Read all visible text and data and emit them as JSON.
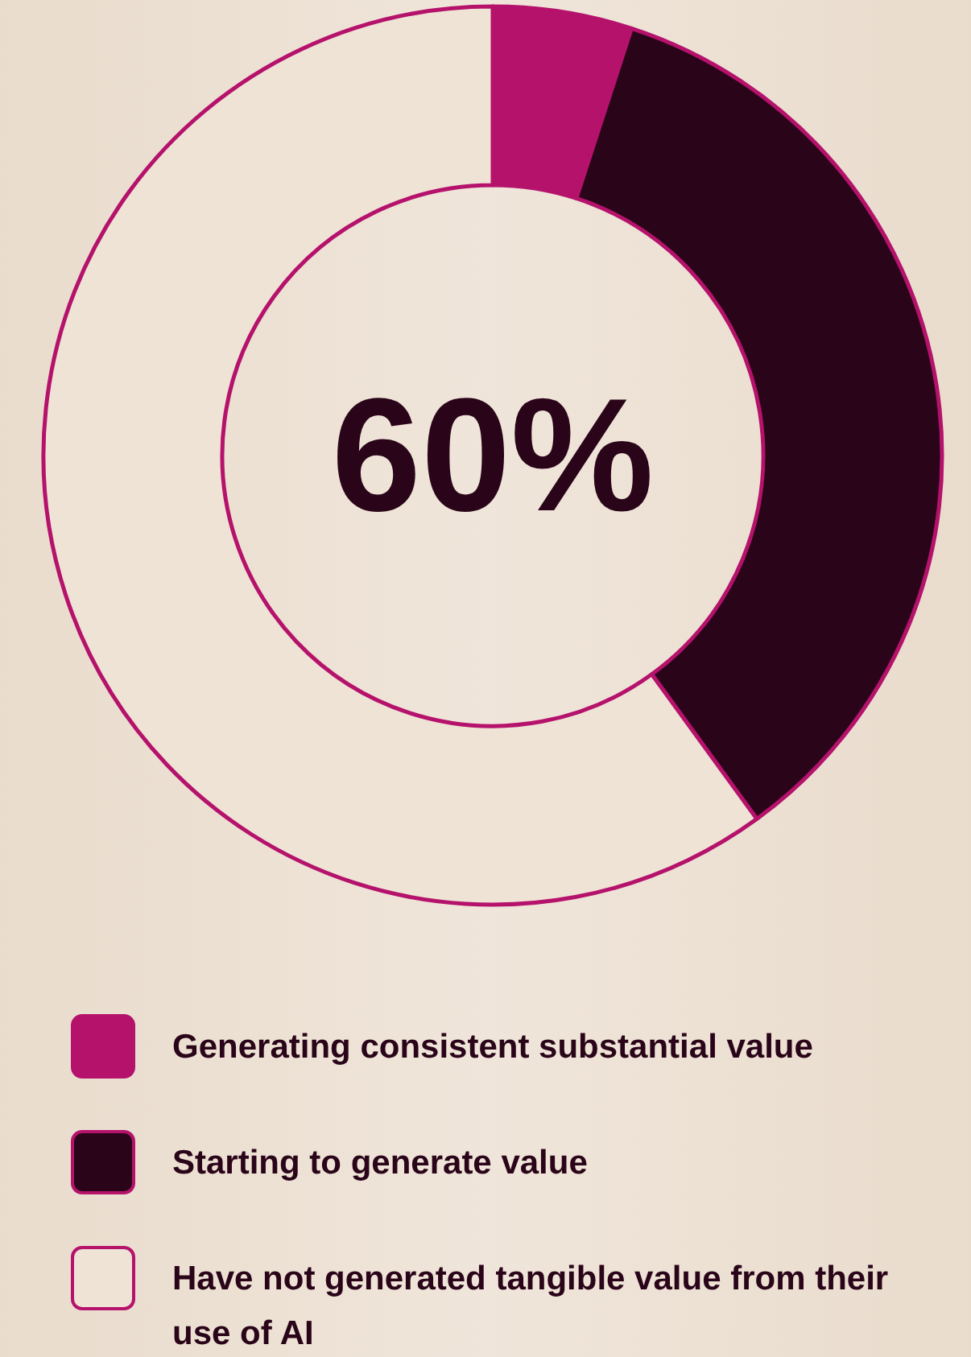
{
  "chart_data": {
    "type": "donut",
    "categories": [
      "Generating consistent substantial value",
      "Starting to generate value",
      "Have not generated tangible value from their use of AI"
    ],
    "values": [
      5,
      35,
      60
    ],
    "colors": [
      "#b5126b",
      "#2a0519",
      "#efe3d6"
    ],
    "annotations": [
      "60%"
    ],
    "legend": "bottom"
  }
}
